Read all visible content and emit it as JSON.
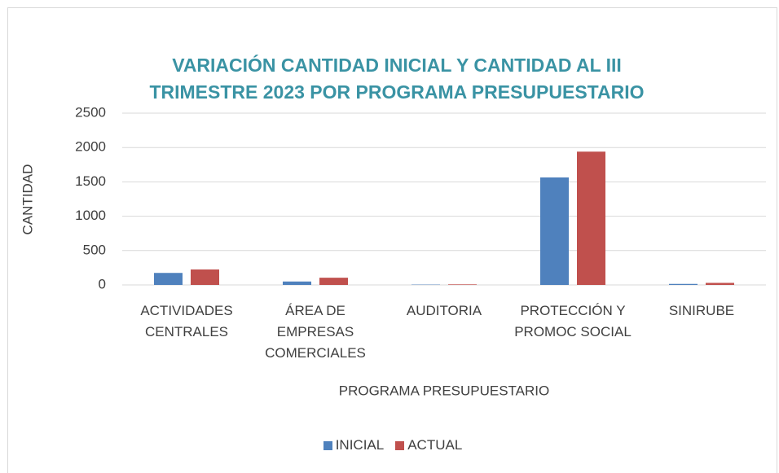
{
  "chart_data": {
    "type": "bar",
    "title": "VARIACIÓN CANTIDAD INICIAL Y CANTIDAD AL III TRIMESTRE 2023 POR PROGRAMA PRESUPUESTARIO",
    "x_label": "PROGRAMA PRESUPUESTARIO",
    "y_label": "CANTIDAD",
    "categories": [
      "ACTIVIDADES CENTRALES",
      "ÁREA DE EMPRESAS COMERCIALES",
      "AUDITORIA",
      "PROTECCIÓN Y PROMOC SOCIAL",
      "SINIRUBE"
    ],
    "series": [
      {
        "name": "INICIAL",
        "color": "#4f81bd",
        "values": [
          175,
          50,
          5,
          1565,
          15
        ]
      },
      {
        "name": "ACTUAL",
        "color": "#c0504d",
        "values": [
          225,
          105,
          8,
          1940,
          30
        ]
      }
    ],
    "ylim": [
      0,
      2500
    ],
    "yticks": [
      0,
      500,
      1000,
      1500,
      2000,
      2500
    ],
    "grid": true,
    "legend": "bottom"
  }
}
